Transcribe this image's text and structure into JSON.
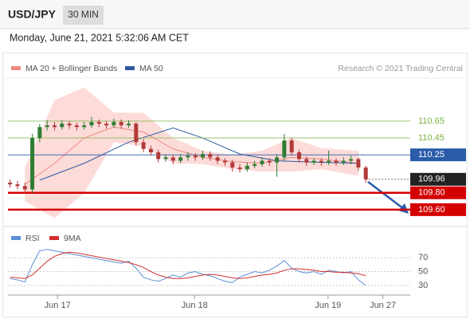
{
  "header": {
    "symbol": "USD/JPY",
    "timeframe": "30 MIN",
    "timestamp": "Monday, June 21, 2021 5:32:06 AM CET",
    "credit": "Research © 2021 Trading Central"
  },
  "chart_data": [
    {
      "type": "candlestick",
      "xlim": [
        -0.5,
        54
      ],
      "ylim": [
        109.4,
        111.16
      ],
      "up_color": "#2e7d32",
      "down_color": "#b23a3a",
      "candles": {
        "open": [
          109.92,
          109.9,
          109.88,
          109.84,
          110.45,
          110.58,
          110.6,
          110.58,
          110.62,
          110.6,
          110.58,
          110.6,
          110.64,
          110.62,
          110.6,
          110.64,
          110.6,
          110.62,
          110.4,
          110.32,
          110.28,
          110.2,
          110.22,
          110.18,
          110.22,
          110.24,
          110.22,
          110.26,
          110.22,
          110.18,
          110.16,
          110.1,
          110.08,
          110.12,
          110.14,
          110.18,
          110.16,
          110.22,
          110.42,
          110.28,
          110.2,
          110.16,
          110.18,
          110.16,
          110.18,
          110.16,
          110.18,
          110.2,
          110.1
        ],
        "high": [
          109.96,
          109.94,
          109.92,
          110.5,
          110.62,
          110.66,
          110.64,
          110.66,
          110.65,
          110.63,
          110.64,
          110.7,
          110.67,
          110.65,
          110.68,
          110.67,
          110.66,
          110.64,
          110.44,
          110.36,
          110.31,
          110.26,
          110.25,
          110.26,
          110.28,
          110.27,
          110.3,
          110.29,
          110.25,
          110.21,
          110.19,
          110.14,
          110.16,
          110.18,
          110.22,
          110.21,
          110.26,
          110.5,
          110.45,
          110.31,
          110.23,
          110.21,
          110.21,
          110.3,
          110.21,
          110.22,
          110.24,
          110.22,
          110.12
        ],
        "low": [
          109.86,
          109.84,
          109.8,
          109.8,
          110.4,
          110.54,
          110.54,
          110.55,
          110.56,
          110.54,
          110.55,
          110.57,
          110.58,
          110.56,
          110.57,
          110.56,
          110.57,
          110.36,
          110.28,
          110.24,
          110.16,
          110.17,
          110.14,
          110.15,
          110.18,
          110.18,
          110.19,
          110.18,
          110.14,
          110.12,
          110.05,
          110.04,
          110.05,
          110.09,
          110.11,
          110.12,
          109.99,
          110.18,
          110.24,
          110.16,
          110.12,
          110.13,
          110.12,
          110.13,
          110.12,
          110.13,
          110.14,
          110.06,
          109.92
        ],
        "close": [
          109.9,
          109.88,
          109.84,
          110.45,
          110.58,
          110.6,
          110.58,
          110.62,
          110.6,
          110.58,
          110.6,
          110.64,
          110.62,
          110.6,
          110.64,
          110.6,
          110.62,
          110.4,
          110.32,
          110.28,
          110.2,
          110.22,
          110.18,
          110.22,
          110.24,
          110.22,
          110.26,
          110.22,
          110.18,
          110.16,
          110.1,
          110.08,
          110.12,
          110.14,
          110.18,
          110.16,
          110.22,
          110.42,
          110.28,
          110.2,
          110.16,
          110.18,
          110.16,
          110.18,
          110.16,
          110.18,
          110.2,
          110.1,
          109.96
        ]
      },
      "overlays": [
        {
          "name": "MA 20 + Bollinger Bands",
          "color": "#f08a80",
          "band_color": "#fcd5d2",
          "x": [
            2,
            6,
            10,
            14,
            18,
            22,
            26,
            30,
            34,
            38,
            42,
            47
          ],
          "values": [
            109.9,
            110.15,
            110.45,
            110.58,
            110.52,
            110.32,
            110.22,
            110.17,
            110.15,
            110.22,
            110.2,
            110.15
          ],
          "upper": [
            110.1,
            110.9,
            111.05,
            110.75,
            110.75,
            110.45,
            110.3,
            110.25,
            110.3,
            110.45,
            110.33,
            110.3
          ],
          "lower": [
            109.7,
            109.5,
            109.8,
            110.4,
            110.35,
            110.15,
            110.14,
            110.08,
            110.05,
            110.05,
            110.08,
            110.0
          ]
        },
        {
          "name": "MA 50",
          "color": "#2c5aa0",
          "x": [
            4,
            10,
            16,
            22,
            26,
            31,
            36,
            42,
            47
          ],
          "values": [
            109.95,
            110.15,
            110.4,
            110.57,
            110.45,
            110.26,
            110.18,
            110.16,
            110.15
          ]
        }
      ],
      "levels": [
        {
          "value": 110.65,
          "label": "110.65",
          "color": "#7cb342",
          "style": "text"
        },
        {
          "value": 110.45,
          "label": "110.45",
          "color": "#7cb342",
          "style": "text"
        },
        {
          "value": 110.25,
          "label": "110.25",
          "color": "#2a5caa",
          "style": "box"
        },
        {
          "value": 109.96,
          "label": "109.96",
          "color": "#222222",
          "style": "box",
          "dotted": true
        },
        {
          "value": 109.8,
          "label": "109.80",
          "color": "#d40000",
          "style": "box",
          "thick": true
        },
        {
          "value": 109.6,
          "label": "109.60",
          "color": "#d40000",
          "style": "box",
          "thick": true
        }
      ]
    },
    {
      "type": "line",
      "xlim": [
        -0.5,
        54
      ],
      "ylim": [
        16,
        91
      ],
      "yticks": [
        70,
        50,
        30
      ],
      "xticks": [
        {
          "value": 6.4,
          "label": "Jun 17"
        },
        {
          "value": 24.9,
          "label": "Jun 18"
        },
        {
          "value": 42.9,
          "label": "Jun 19"
        },
        {
          "value": 50.3,
          "label": "Jun 27"
        }
      ],
      "series": [
        {
          "name": "RSI",
          "color": "#5b8fd6",
          "values": [
            40,
            38,
            35,
            60,
            80,
            82,
            80,
            78,
            76,
            74,
            72,
            70,
            68,
            66,
            64,
            62,
            65,
            55,
            42,
            38,
            36,
            40,
            45,
            42,
            48,
            50,
            46,
            44,
            40,
            36,
            34,
            42,
            46,
            50,
            48,
            52,
            58,
            66,
            55,
            50,
            48,
            50,
            46,
            52,
            50,
            48,
            50,
            38,
            30
          ]
        },
        {
          "name": "9MA",
          "color": "#d32f2f",
          "values": [
            42,
            41,
            40,
            45,
            55,
            65,
            72,
            76,
            78,
            77,
            75,
            73,
            71,
            69,
            67,
            65,
            63,
            60,
            56,
            50,
            45,
            42,
            40,
            40,
            41,
            43,
            45,
            46,
            45,
            43,
            41,
            40,
            41,
            43,
            45,
            46,
            48,
            52,
            54,
            54,
            53,
            52,
            50,
            50,
            49,
            49,
            48,
            47,
            44
          ]
        }
      ]
    }
  ]
}
